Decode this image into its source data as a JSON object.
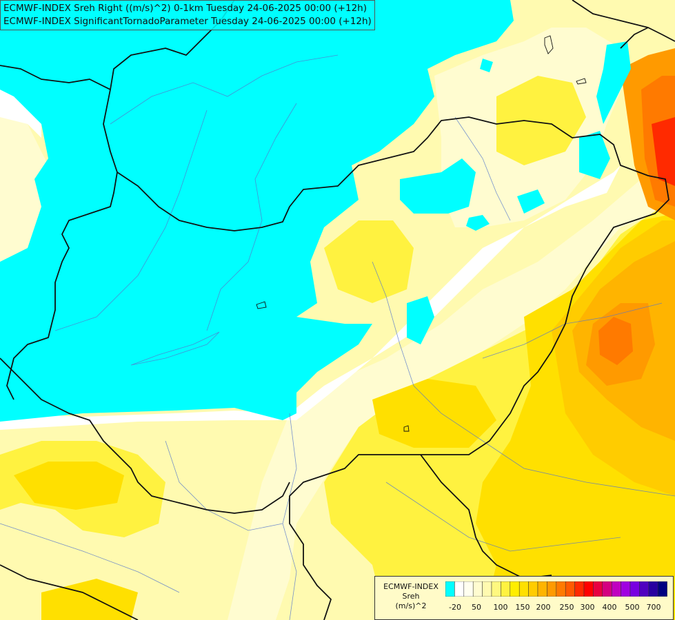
{
  "titles": {
    "line1": "ECMWF-INDEX Sreh Right ((m/s)^2) 0-1km Tuesday 24-06-2025 00:00 (+12h)",
    "line2": "ECMWF-INDEX SignificantTornadoParameter Tuesday 24-06-2025 00:00 (+12h)"
  },
  "legend": {
    "model": "ECMWF-INDEX",
    "parameter": "Sreh",
    "unit": "(m/s)^2",
    "colors": [
      "#00ffff",
      "#ffffff",
      "#fffff0",
      "#fffcd0",
      "#fffab0",
      "#fff880",
      "#fff240",
      "#ffee00",
      "#ffe000",
      "#ffcc00",
      "#ffb400",
      "#ff9a00",
      "#ff7a00",
      "#ff5a00",
      "#ff2a00",
      "#ff0000",
      "#e80040",
      "#d40080",
      "#c000c0",
      "#a000e0",
      "#7800e0",
      "#5000c0",
      "#2800a0",
      "#000080"
    ],
    "labels": [
      "-20",
      "50",
      "100",
      "150",
      "200",
      "250",
      "300",
      "400",
      "500",
      "700"
    ]
  }
}
